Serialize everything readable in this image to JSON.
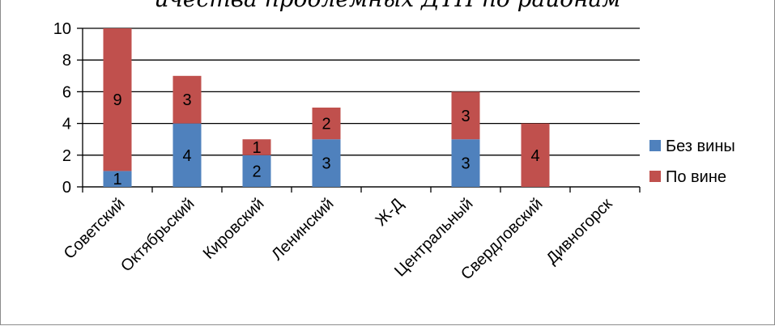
{
  "chart_data": {
    "type": "bar",
    "stacked": true,
    "title": "ичества проблемных ДТП по районам",
    "categories": [
      "Советский",
      "Октябрьский",
      "Кировский",
      "Ленинский",
      "Ж-Д",
      "Центральный",
      "Свердловский",
      "Дивногорск"
    ],
    "series": [
      {
        "name": "Без вины",
        "color": "#4f81bd",
        "values": [
          1,
          4,
          2,
          3,
          0,
          3,
          0,
          0
        ]
      },
      {
        "name": "По вине",
        "color": "#c0504d",
        "values": [
          9,
          3,
          1,
          2,
          0,
          3,
          4,
          0
        ]
      }
    ],
    "ylim": [
      0,
      10
    ],
    "yticks": [
      0,
      2,
      4,
      6,
      8,
      10
    ],
    "grid": true,
    "legend_position": "right",
    "xlabel": "",
    "ylabel": ""
  }
}
